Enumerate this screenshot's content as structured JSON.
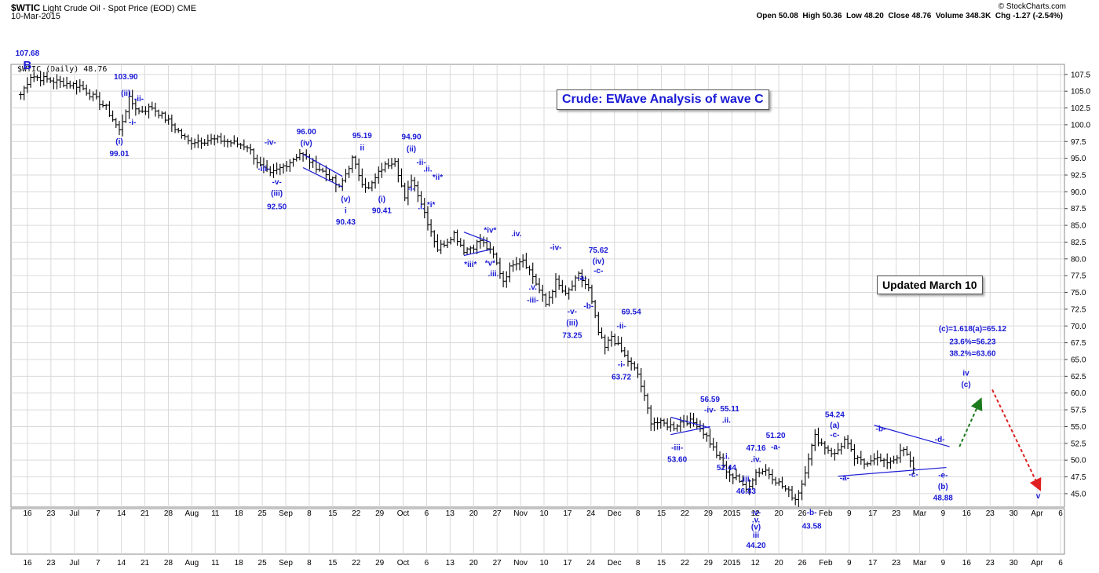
{
  "header": {
    "symbol": "$WTIC",
    "name": "Light Crude Oil - Spot Price (EOD)",
    "exchange": "CME",
    "date": "10-Mar-2015",
    "copyright": "© StockCharts.com",
    "quote": "Open 50.08  High 50.36  Low 48.20  Close 48.76  Volume 348.3K  Chg -1.27 (-2.54%)",
    "legend": "$WTIC (Daily) 48.76"
  },
  "colors": {
    "label": "#1a1ad6",
    "price": "#000000",
    "grid": "#d9d9d9",
    "up_arrow": "#1e7a1e",
    "down_arrow": "#e02020"
  },
  "annotations": {
    "title": "Crude: EWave Analysis of wave C",
    "updated": "Updated March 10"
  },
  "chart_data": {
    "type": "ohlc",
    "ylim": [
      43,
      109
    ],
    "yticks": [
      "45.0",
      "47.5",
      "50.0",
      "52.5",
      "55.0",
      "57.5",
      "60.0",
      "62.5",
      "65.0",
      "67.5",
      "70.0",
      "72.5",
      "75.0",
      "77.5",
      "80.0",
      "82.5",
      "85.0",
      "87.5",
      "90.0",
      "92.5",
      "95.0",
      "97.5",
      "100.0",
      "102.5",
      "105.0",
      "107.5"
    ],
    "xticks": [
      "16",
      "23",
      "Jul",
      "7",
      "14",
      "21",
      "28",
      "Aug",
      "11",
      "18",
      "25",
      "Sep",
      "8",
      "15",
      "22",
      "29",
      "Oct",
      "6",
      "13",
      "20",
      "27",
      "Nov",
      "10",
      "17",
      "24",
      "Dec",
      "8",
      "15",
      "22",
      "29",
      "2015",
      "12",
      "20",
      "26",
      "Feb",
      "9",
      "17",
      "23",
      "Mar",
      "9",
      "16",
      "23",
      "30",
      "Apr",
      "6"
    ],
    "bars_step_days": 1,
    "anchors": [
      [
        0,
        104.5
      ],
      [
        3,
        107.3
      ],
      [
        10,
        106.5
      ],
      [
        18,
        105.8
      ],
      [
        26,
        102.5
      ],
      [
        30,
        99.1
      ],
      [
        33,
        103.8
      ],
      [
        36,
        102.0
      ],
      [
        40,
        102.6
      ],
      [
        45,
        100.5
      ],
      [
        51,
        97.5
      ],
      [
        60,
        97.8
      ],
      [
        69,
        96.8
      ],
      [
        73,
        93.8
      ],
      [
        76,
        92.5
      ],
      [
        82,
        94.5
      ],
      [
        85,
        95.8
      ],
      [
        90,
        93.8
      ],
      [
        94,
        92.2
      ],
      [
        97,
        90.5
      ],
      [
        101,
        94.9
      ],
      [
        104,
        91.5
      ],
      [
        106,
        90.4
      ],
      [
        110,
        93.5
      ],
      [
        114,
        94.9
      ],
      [
        117,
        88.8
      ],
      [
        119,
        92.0
      ],
      [
        121,
        89.8
      ],
      [
        124,
        85.5
      ],
      [
        127,
        81.5
      ],
      [
        130,
        82.8
      ],
      [
        132,
        83.8
      ],
      [
        135,
        81.3
      ],
      [
        138,
        81.9
      ],
      [
        140,
        82.8
      ],
      [
        144,
        80.5
      ],
      [
        147,
        76.8
      ],
      [
        150,
        79.5
      ],
      [
        153,
        80.0
      ],
      [
        156,
        77.4
      ],
      [
        160,
        73.2
      ],
      [
        163,
        76.6
      ],
      [
        166,
        74.5
      ],
      [
        170,
        77.5
      ],
      [
        173,
        75.5
      ],
      [
        176,
        69.0
      ],
      [
        178,
        66.7
      ],
      [
        180,
        68.5
      ],
      [
        184,
        65.5
      ],
      [
        188,
        62.8
      ],
      [
        192,
        55.8
      ],
      [
        195,
        55.5
      ],
      [
        199,
        55.0
      ],
      [
        202,
        56.0
      ],
      [
        206,
        55.4
      ],
      [
        209,
        53.5
      ],
      [
        213,
        50.0
      ],
      [
        216,
        47.5
      ],
      [
        218,
        47.8
      ],
      [
        220,
        46.0
      ],
      [
        221,
        45.6
      ],
      [
        224,
        48.2
      ],
      [
        227,
        48.5
      ],
      [
        230,
        47.0
      ],
      [
        234,
        45.2
      ],
      [
        236,
        44.2
      ],
      [
        238,
        46.5
      ],
      [
        240,
        50.5
      ],
      [
        242,
        53.5
      ],
      [
        245,
        52.0
      ],
      [
        248,
        50.8
      ],
      [
        251,
        53.0
      ],
      [
        254,
        50.3
      ],
      [
        257,
        49.5
      ],
      [
        260,
        50.5
      ],
      [
        263,
        49.6
      ],
      [
        266,
        50.2
      ],
      [
        269,
        51.5
      ],
      [
        272,
        48.8
      ]
    ],
    "labels": [
      {
        "t": "107.68",
        "d": 2,
        "v": 110.3,
        "a": "start"
      },
      {
        "t": "B",
        "d": 2,
        "v": 108.3,
        "a": "start",
        "s": 15
      },
      {
        "t": "103.90",
        "d": 32,
        "v": 106.8
      },
      {
        "t": "(ii)",
        "d": 32,
        "v": 104.3
      },
      {
        "t": "-ii-",
        "d": 36,
        "v": 103.5
      },
      {
        "t": "-i-",
        "d": 34,
        "v": 100.0
      },
      {
        "t": "(i)",
        "d": 30,
        "v": 97.1
      },
      {
        "t": "99.01",
        "d": 30,
        "v": 95.3
      },
      {
        "t": "-iv-",
        "d": 76,
        "v": 97.0
      },
      {
        "t": "-iii-",
        "d": 74,
        "v": 93.1
      },
      {
        "t": "-v-",
        "d": 78,
        "v": 91.1
      },
      {
        "t": "(iii)",
        "d": 78,
        "v": 89.4
      },
      {
        "t": "92.50",
        "d": 78,
        "v": 87.4
      },
      {
        "t": "96.00",
        "d": 87,
        "v": 98.6
      },
      {
        "t": "(iv)",
        "d": 87,
        "v": 96.9
      },
      {
        "t": "(v)",
        "d": 99,
        "v": 88.5
      },
      {
        "t": "i",
        "d": 99,
        "v": 86.8
      },
      {
        "t": "90.43",
        "d": 99,
        "v": 85.1
      },
      {
        "t": "95.19",
        "d": 104,
        "v": 98.0
      },
      {
        "t": "ii",
        "d": 104,
        "v": 96.2
      },
      {
        "t": "(i)",
        "d": 110,
        "v": 88.5
      },
      {
        "t": "90.41",
        "d": 110,
        "v": 86.8
      },
      {
        "t": "94.90",
        "d": 119,
        "v": 97.8
      },
      {
        "t": "(ii)",
        "d": 119,
        "v": 96.0
      },
      {
        "t": "-ii-",
        "d": 122,
        "v": 94.0
      },
      {
        "t": ".ii.",
        "d": 124,
        "v": 93.0
      },
      {
        "t": "*ii*",
        "d": 127,
        "v": 91.8
      },
      {
        "t": "-i-",
        "d": 119,
        "v": 90.1
      },
      {
        "t": "*i*",
        "d": 125,
        "v": 87.7
      },
      {
        "t": ".i.",
        "d": 122,
        "v": 87.4
      },
      {
        "t": "*iv*",
        "d": 143,
        "v": 83.9
      },
      {
        "t": ".iv.",
        "d": 151,
        "v": 83.4
      },
      {
        "t": "*v*",
        "d": 143,
        "v": 79.0
      },
      {
        "t": "*iii*",
        "d": 137,
        "v": 78.8
      },
      {
        "t": ".iii.",
        "d": 144,
        "v": 77.4
      },
      {
        "t": "-iv-",
        "d": 163,
        "v": 81.3
      },
      {
        "t": ".v.",
        "d": 156,
        "v": 75.4
      },
      {
        "t": "-iii-",
        "d": 156,
        "v": 73.5
      },
      {
        "t": "75.62",
        "d": 176,
        "v": 80.9
      },
      {
        "t": "(iv)",
        "d": 176,
        "v": 79.3
      },
      {
        "t": "-c-",
        "d": 176,
        "v": 77.9
      },
      {
        "t": "-a-",
        "d": 171,
        "v": 76.8
      },
      {
        "t": "-b-",
        "d": 173,
        "v": 72.6
      },
      {
        "t": "-v-",
        "d": 168,
        "v": 71.8
      },
      {
        "t": "(iii)",
        "d": 168,
        "v": 70.1
      },
      {
        "t": "73.25",
        "d": 168,
        "v": 68.2
      },
      {
        "t": "69.54",
        "d": 186,
        "v": 71.7
      },
      {
        "t": "-ii-",
        "d": 183,
        "v": 69.6
      },
      {
        "t": "-i-",
        "d": 183,
        "v": 63.9
      },
      {
        "t": "63.72",
        "d": 183,
        "v": 62.0
      },
      {
        "t": "56.59",
        "d": 210,
        "v": 58.7
      },
      {
        "t": "-iv-",
        "d": 210,
        "v": 57.1
      },
      {
        "t": "55.11",
        "d": 216,
        "v": 57.3
      },
      {
        "t": ".ii.",
        "d": 215,
        "v": 55.6
      },
      {
        "t": "-iii-",
        "d": 200,
        "v": 51.5
      },
      {
        "t": "53.60",
        "d": 200,
        "v": 49.7
      },
      {
        "t": ".i.",
        "d": 215,
        "v": 50.2
      },
      {
        "t": "52.44",
        "d": 215,
        "v": 48.5
      },
      {
        "t": "51.20",
        "d": 230,
        "v": 53.3
      },
      {
        "t": "-a-",
        "d": 230,
        "v": 51.6
      },
      {
        "t": "47.16",
        "d": 224,
        "v": 51.4
      },
      {
        "t": ".iv.",
        "d": 224,
        "v": 49.7
      },
      {
        "t": ".iii.",
        "d": 221,
        "v": 46.8
      },
      {
        "t": "46.83",
        "d": 221,
        "v": 45.0
      },
      {
        "t": "54.24",
        "d": 248,
        "v": 56.4
      },
      {
        "t": "(a)",
        "d": 248,
        "v": 54.8
      },
      {
        "t": "-c-",
        "d": 248,
        "v": 53.4
      },
      {
        "t": "-b-",
        "d": 262,
        "v": 54.3
      },
      {
        "t": "-d-",
        "d": 280,
        "v": 52.7
      },
      {
        "t": "-a-",
        "d": 251,
        "v": 47.0
      },
      {
        "t": "-c-",
        "d": 272,
        "v": 47.5
      },
      {
        "t": "-e-",
        "d": 281,
        "v": 47.4
      },
      {
        "t": "(b)",
        "d": 281,
        "v": 45.7
      },
      {
        "t": "48.88",
        "d": 281,
        "v": 44.0
      },
      {
        "t": "(c)=1.618(a)=65.12",
        "d": 290,
        "v": 69.2
      },
      {
        "t": "23.6%=56.23",
        "d": 290,
        "v": 67.3
      },
      {
        "t": "38.2%=63.60",
        "d": 290,
        "v": 65.5
      },
      {
        "t": "iv",
        "d": 288,
        "v": 62.6
      },
      {
        "t": "(c)",
        "d": 288,
        "v": 60.9
      },
      {
        "t": "v",
        "d": 310,
        "v": 44.3
      }
    ],
    "lower_labels": [
      {
        "t": "-v-",
        "d": 224,
        "r": 0.0
      },
      {
        "t": ".v.",
        "d": 224,
        "r": 0.16
      },
      {
        "t": "(v)",
        "d": 224,
        "r": 0.32
      },
      {
        "t": "iii",
        "d": 224,
        "r": 0.5
      },
      {
        "t": "44.20",
        "d": 224,
        "r": 0.72
      },
      {
        "t": "-b-",
        "d": 241,
        "r": 0.0
      },
      {
        "t": "43.58",
        "d": 241,
        "r": 0.3
      }
    ],
    "trendlines": [
      [
        86,
        95.6,
        98,
        92.3
      ],
      [
        86,
        93.6,
        98,
        90.7
      ],
      [
        135,
        84.0,
        143,
        82.5
      ],
      [
        135,
        80.5,
        143,
        81.4
      ],
      [
        198,
        56.4,
        210,
        54.8
      ],
      [
        198,
        53.8,
        210,
        55.0
      ],
      [
        260,
        55.2,
        283,
        52.0
      ],
      [
        249,
        47.6,
        282,
        48.9
      ]
    ],
    "arrows": [
      {
        "from": [
          286,
          52.0
        ],
        "to": [
          292,
          58.5
        ],
        "color": "up_arrow"
      },
      {
        "from": [
          296,
          60.5
        ],
        "to": [
          310,
          46.2
        ],
        "color": "down_arrow"
      }
    ]
  }
}
